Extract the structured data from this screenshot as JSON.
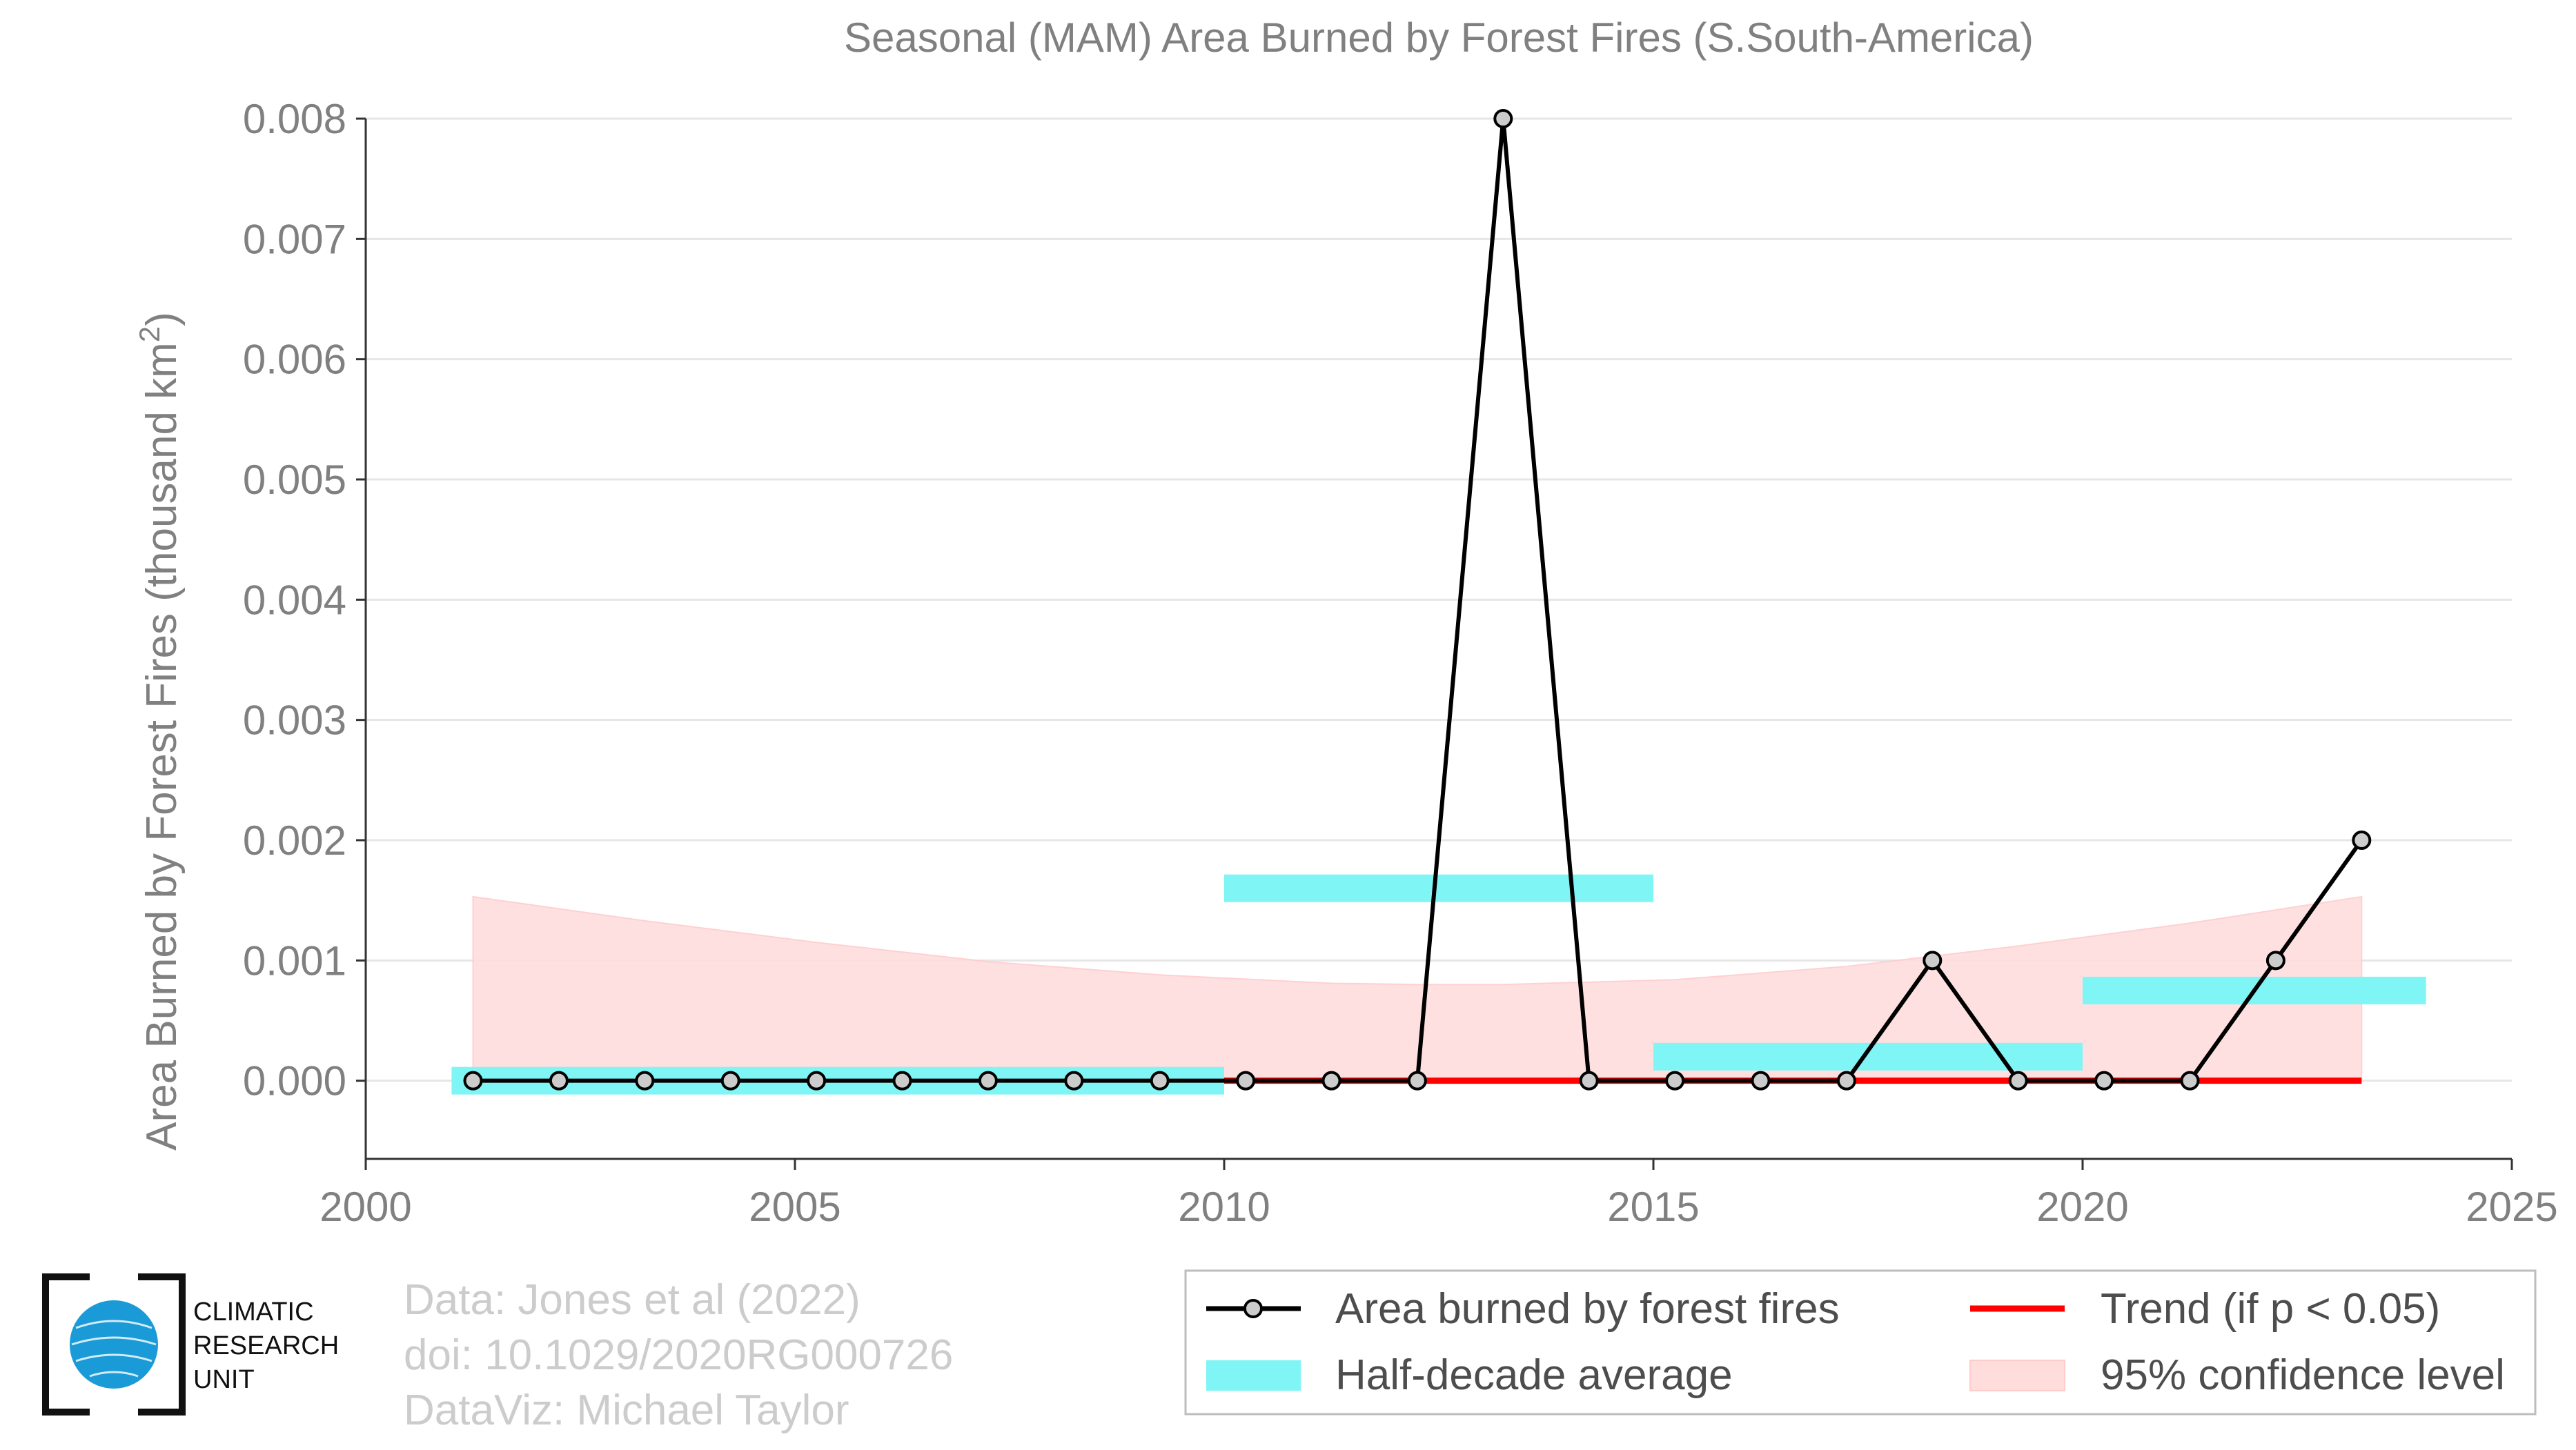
{
  "chart_data": {
    "type": "line",
    "title": "Seasonal (MAM) Area Burned by Forest Fires (S.South-America)",
    "xlabel": "",
    "ylabel": "Area Burned by Forest Fires (thousand km",
    "ylabel_sup": "2",
    "ylabel_close": ")",
    "xlim": [
      2000,
      2025
    ],
    "ylim": [
      -0.00065,
      0.008
    ],
    "xticks": [
      2000,
      2005,
      2010,
      2015,
      2020,
      2025
    ],
    "xtick_labels": [
      "2000",
      "2005",
      "2010",
      "2015",
      "2020",
      "2025"
    ],
    "yticks": [
      0.0,
      0.001,
      0.002,
      0.003,
      0.004,
      0.005,
      0.006,
      0.007,
      0.008
    ],
    "ytick_labels": [
      "0.000",
      "0.001",
      "0.002",
      "0.003",
      "0.004",
      "0.005",
      "0.006",
      "0.007",
      "0.008"
    ],
    "grid": "horizontal",
    "legend_position": "bottom-right",
    "series": [
      {
        "name": "Area burned by forest fires",
        "type": "line-markers",
        "color": "#000000",
        "marker_fill": "#cccccc",
        "x": [
          2001.25,
          2002.25,
          2003.25,
          2004.25,
          2005.25,
          2006.25,
          2007.25,
          2008.25,
          2009.25,
          2010.25,
          2011.25,
          2012.25,
          2013.25,
          2014.25,
          2015.25,
          2016.25,
          2017.25,
          2018.25,
          2019.25,
          2020.25,
          2021.25,
          2022.25,
          2023.25
        ],
        "y": [
          0,
          0,
          0,
          0,
          0,
          0,
          0,
          0,
          0,
          0,
          0,
          0,
          0.008,
          0,
          0,
          0,
          0,
          0.001,
          0,
          0,
          0,
          0.001,
          0.002
        ]
      },
      {
        "name": "Trend (if p < 0.05)",
        "type": "line",
        "color": "#ff0000",
        "x": [
          2010.0,
          2023.25
        ],
        "y": [
          0,
          0
        ]
      },
      {
        "name": "Half-decade average",
        "type": "segments",
        "color": "#7ff5f5",
        "segments": [
          {
            "x0": 2001.0,
            "x1": 2010.0,
            "y": 0.0
          },
          {
            "x0": 2010.0,
            "x1": 2015.0,
            "y": 0.0016
          },
          {
            "x0": 2015.0,
            "x1": 2020.0,
            "y": 0.0002
          },
          {
            "x0": 2020.0,
            "x1": 2024.0,
            "y": 0.00075
          }
        ]
      },
      {
        "name": "95% confidence level",
        "type": "band",
        "color": "#ffdddd",
        "x": [
          2001.25,
          2003.25,
          2005.25,
          2007.25,
          2009.25,
          2011.25,
          2012.25,
          2013.25,
          2015.25,
          2017.25,
          2019.25,
          2021.25,
          2023.25
        ],
        "upper": [
          0.00153,
          0.00133,
          0.00115,
          0.00099,
          0.00088,
          0.00081,
          0.0008,
          0.0008,
          0.00084,
          0.00095,
          0.00112,
          0.00131,
          0.00153
        ],
        "lower": [
          0,
          0,
          0,
          0,
          0,
          0,
          0,
          0,
          0,
          0,
          0,
          0,
          0
        ]
      }
    ]
  },
  "legend": {
    "items": [
      {
        "label": "Area burned by forest fires"
      },
      {
        "label": "Half-decade average"
      },
      {
        "label": "Trend (if p < 0.05)"
      },
      {
        "label": "95% confidence level"
      }
    ]
  },
  "credits": {
    "line1": "Data: Jones et al (2022)",
    "line2": "doi: 10.1029/2020RG000726",
    "line3": "DataViz: Michael Taylor"
  },
  "logo": {
    "line1": "CLIMATIC",
    "line2": "RESEARCH",
    "line3": "UNIT",
    "globe_color": "#1a9bd7"
  }
}
